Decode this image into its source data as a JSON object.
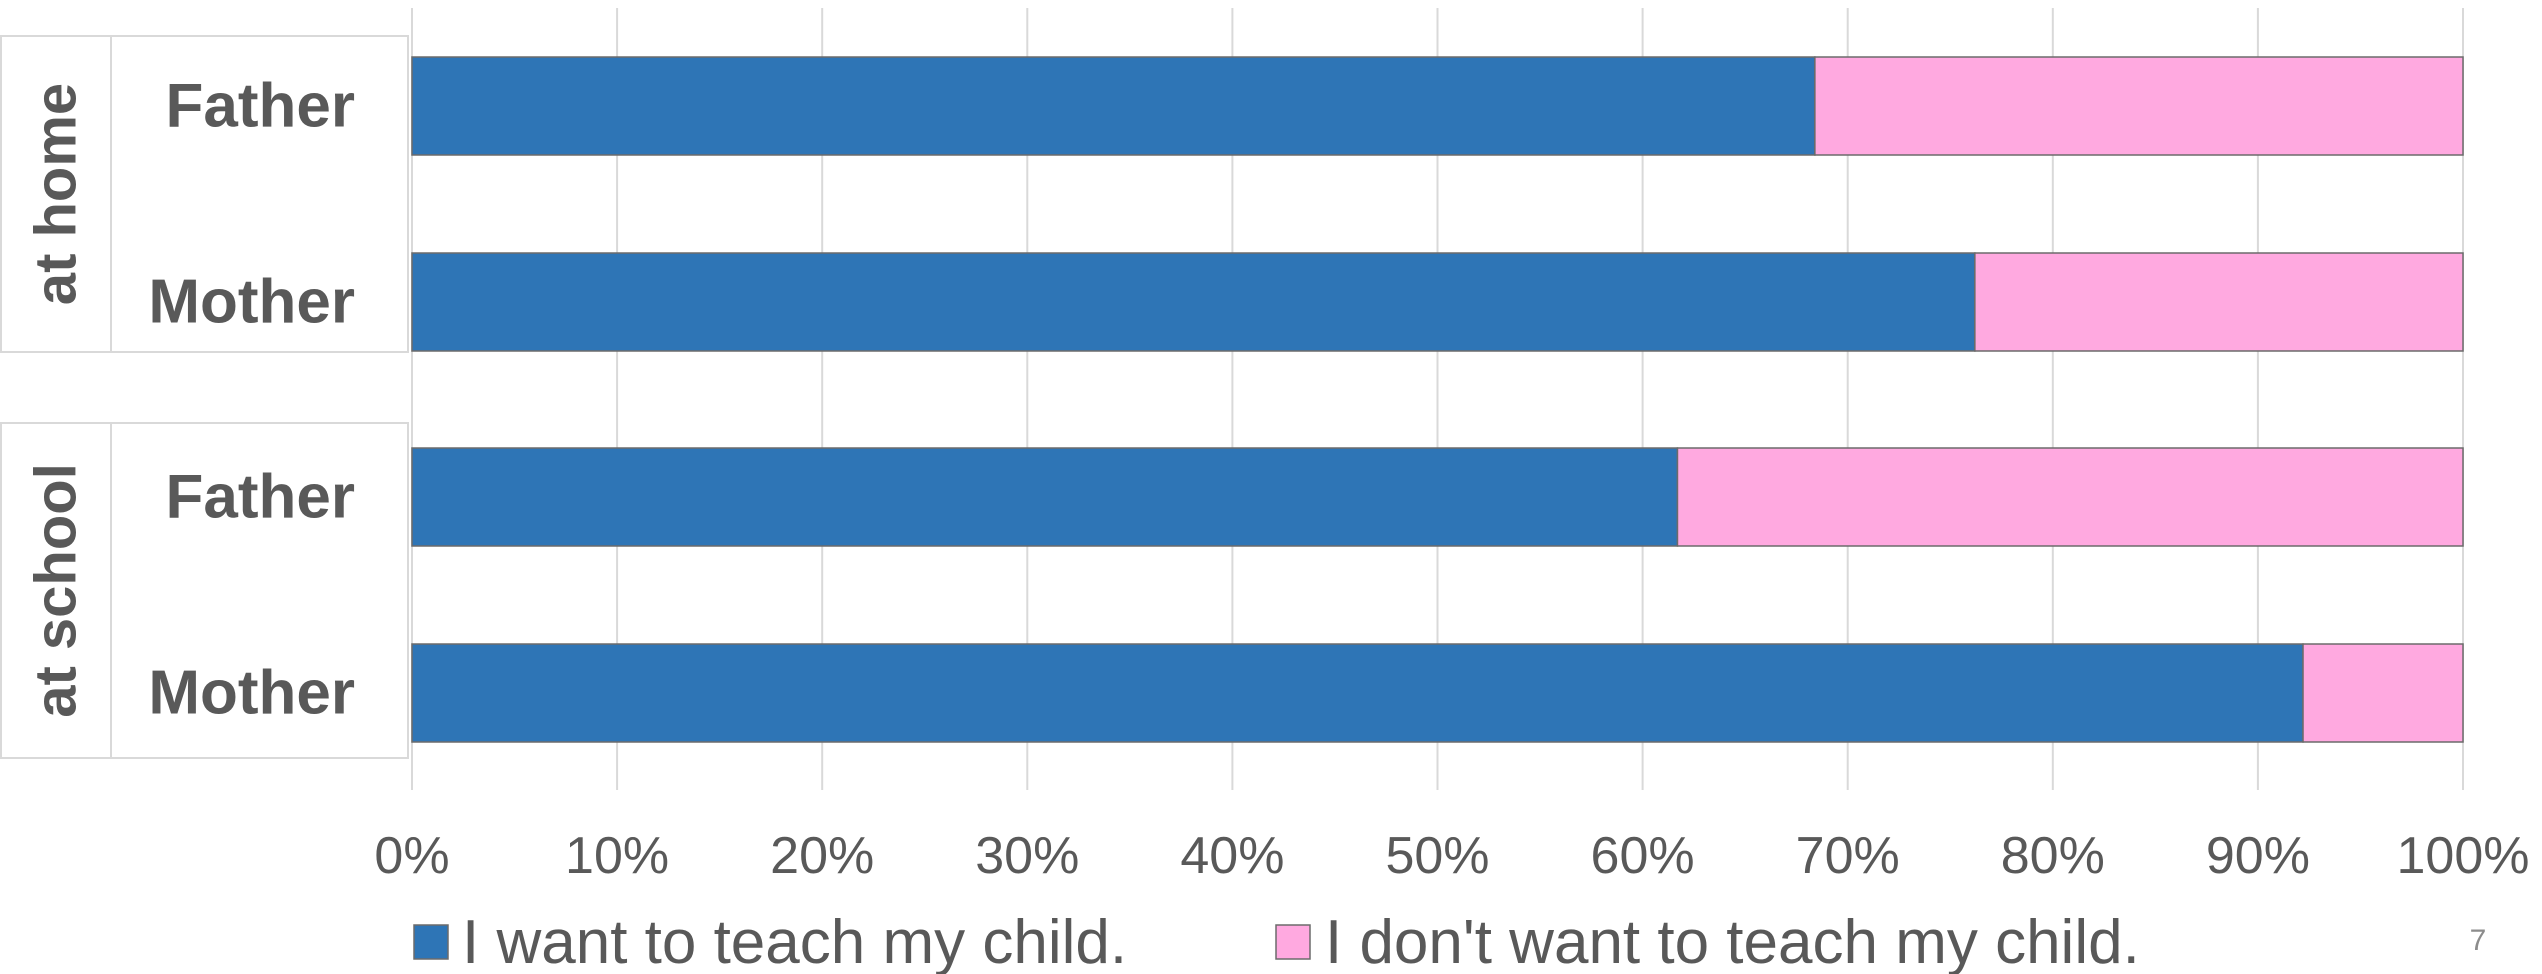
{
  "chart_data": {
    "type": "bar",
    "orientation": "horizontal",
    "stacked": "percent",
    "groups": [
      {
        "label": "at home",
        "categories": [
          "Father",
          "Mother"
        ]
      },
      {
        "label": "at school",
        "categories": [
          "Father",
          "Mother"
        ]
      }
    ],
    "series": [
      {
        "name": "I want to teach my child.",
        "color": "#2e75b6",
        "values": [
          68.4,
          76.2,
          61.7,
          92.2
        ]
      },
      {
        "name": "I don't want to teach my child.",
        "color": "#ffa9e0",
        "values": [
          31.6,
          23.8,
          38.3,
          7.8
        ]
      }
    ],
    "xlim": [
      0,
      100
    ],
    "x_ticks": [
      "0%",
      "10%",
      "20%",
      "30%",
      "40%",
      "50%",
      "60%",
      "70%",
      "80%",
      "90%",
      "100%"
    ],
    "grid": "vertical",
    "legend_position": "bottom"
  },
  "page_number": "7"
}
